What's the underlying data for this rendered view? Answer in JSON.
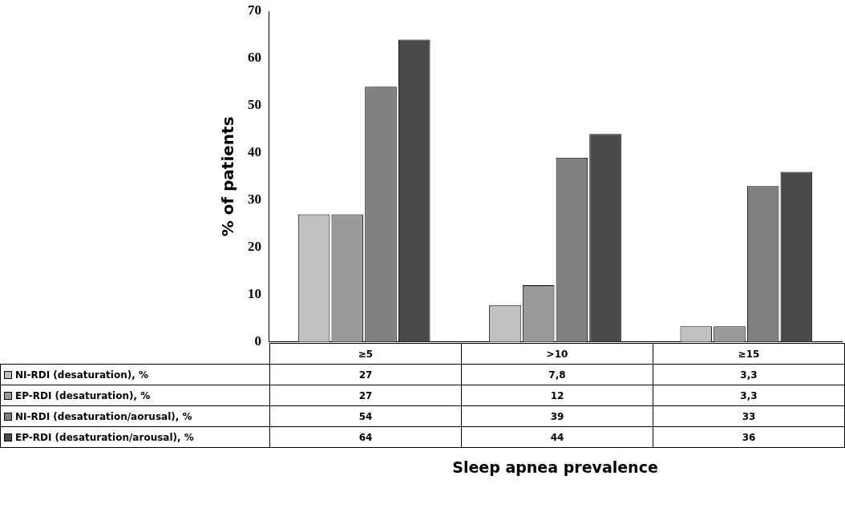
{
  "chart_data": {
    "type": "bar",
    "ylabel": "% of patients",
    "annotations": [
      "Sleep apnea prevalence"
    ],
    "categories": [
      "≥5",
      ">10",
      "≥15"
    ],
    "series": [
      {
        "name": "NI-RDI (desaturation), %",
        "color": "#c0c0c0",
        "values": [
          27,
          7.8,
          3.3
        ],
        "value_labels": [
          "27",
          "7,8",
          "3,3"
        ]
      },
      {
        "name": "EP-RDI (desaturation), %",
        "color": "#9a9a9a",
        "values": [
          27,
          12,
          3.3
        ],
        "value_labels": [
          "27",
          "12",
          "3,3"
        ]
      },
      {
        "name": "NI-RDI (desaturation/aorusal), %",
        "color": "#808080",
        "values": [
          54,
          39,
          33
        ],
        "value_labels": [
          "54",
          "39",
          "33"
        ]
      },
      {
        "name": "EP-RDI (desaturation/arousal), %",
        "color": "#4a4a4a",
        "values": [
          64,
          44,
          36
        ],
        "value_labels": [
          "64",
          "44",
          "36"
        ]
      }
    ],
    "ylim": [
      0,
      70
    ],
    "yticks": [
      0,
      10,
      20,
      30,
      40,
      50,
      60,
      70
    ],
    "grid": false,
    "legend": "bottom"
  }
}
